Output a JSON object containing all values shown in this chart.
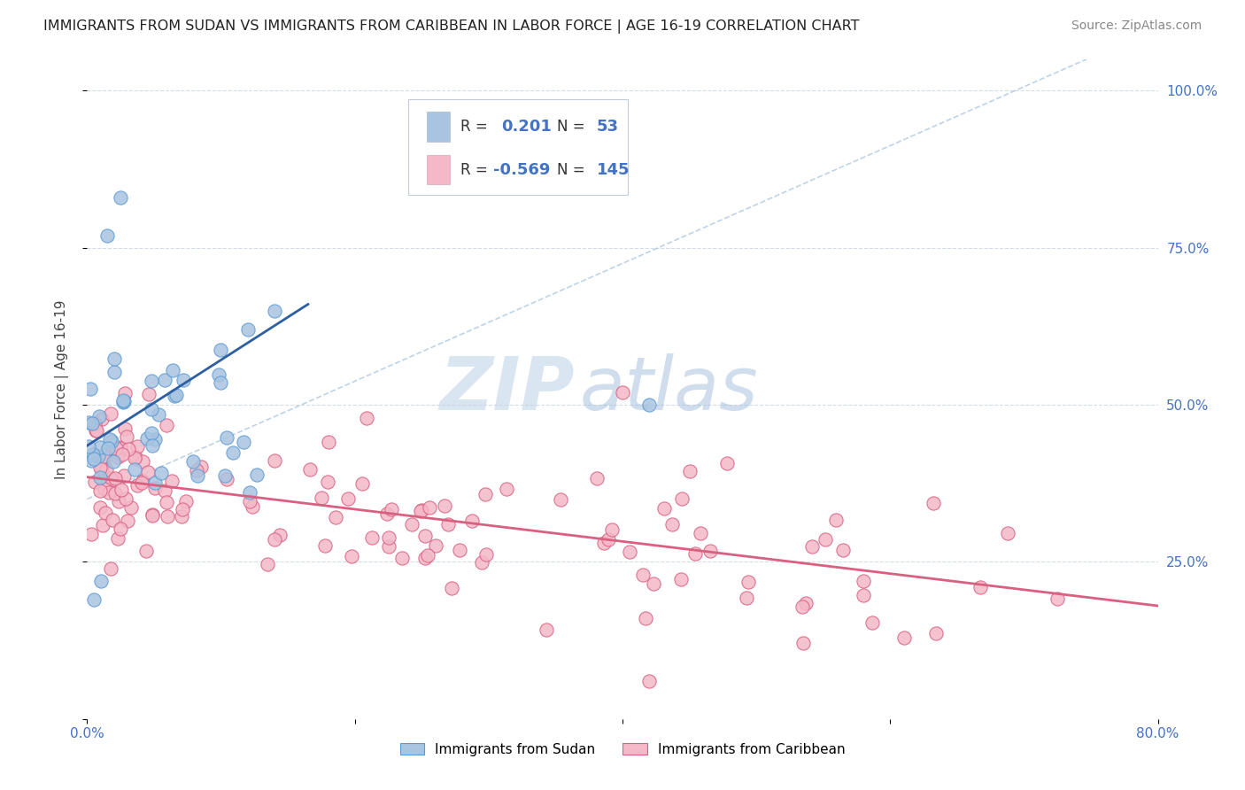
{
  "title": "IMMIGRANTS FROM SUDAN VS IMMIGRANTS FROM CARIBBEAN IN LABOR FORCE | AGE 16-19 CORRELATION CHART",
  "source": "Source: ZipAtlas.com",
  "ylabel": "In Labor Force | Age 16-19",
  "xmin": 0.0,
  "xmax": 0.8,
  "ymin": 0.0,
  "ymax": 1.05,
  "sudan_R": 0.201,
  "sudan_N": 53,
  "caribbean_R": -0.569,
  "caribbean_N": 145,
  "sudan_color": "#a8c4e0",
  "sudan_edge_color": "#5b9bd5",
  "sudan_line_color": "#2e5fa3",
  "caribbean_color": "#f4b8c8",
  "caribbean_edge_color": "#d96080",
  "caribbean_line_color": "#d96080",
  "dashed_line_color": "#a8c4e0",
  "watermark_color": "#c8d8ea",
  "legend_box_color": "#e8eef5",
  "grid_color": "#c8d4e0",
  "tick_label_color": "#4472c4",
  "title_fontsize": 11.5,
  "source_fontsize": 10,
  "tick_fontsize": 11,
  "ylabel_fontsize": 11
}
